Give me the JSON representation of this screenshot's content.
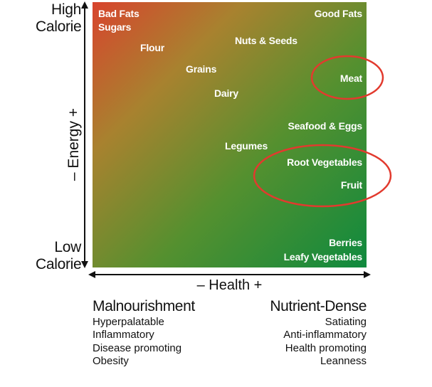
{
  "y_axis": {
    "top_label": [
      "High",
      "Calorie"
    ],
    "bottom_label": [
      "Low",
      "Calorie"
    ],
    "title": "– Energy +"
  },
  "x_axis": {
    "title": "– Health +"
  },
  "grid_items": {
    "bad_fats": "Bad Fats",
    "sugars": "Sugars",
    "good_fats": "Good Fats",
    "flour": "Flour",
    "nuts_seeds": "Nuts & Seeds",
    "grains": "Grains",
    "meat": "Meat",
    "dairy": "Dairy",
    "seafood_eggs": "Seafood & Eggs",
    "legumes": "Legumes",
    "root_vegetables": "Root Vegetables",
    "fruit": "Fruit",
    "berries": "Berries",
    "leafy_vegetables": "Leafy Vegetables"
  },
  "left_column": {
    "heading": "Malnourishment",
    "lines": [
      "Hyperpalatable",
      "Inflammatory",
      "Disease promoting",
      "Obesity"
    ]
  },
  "right_column": {
    "heading": "Nutrient-Dense",
    "lines": [
      "Satiating",
      "Anti-inflammatory",
      "Health promoting",
      "Leanness"
    ]
  },
  "colors": {
    "gradient_top_left": "#d8442d",
    "gradient_bottom_right": "#0f8a3e",
    "highlight_circle": "#e23a2e"
  }
}
